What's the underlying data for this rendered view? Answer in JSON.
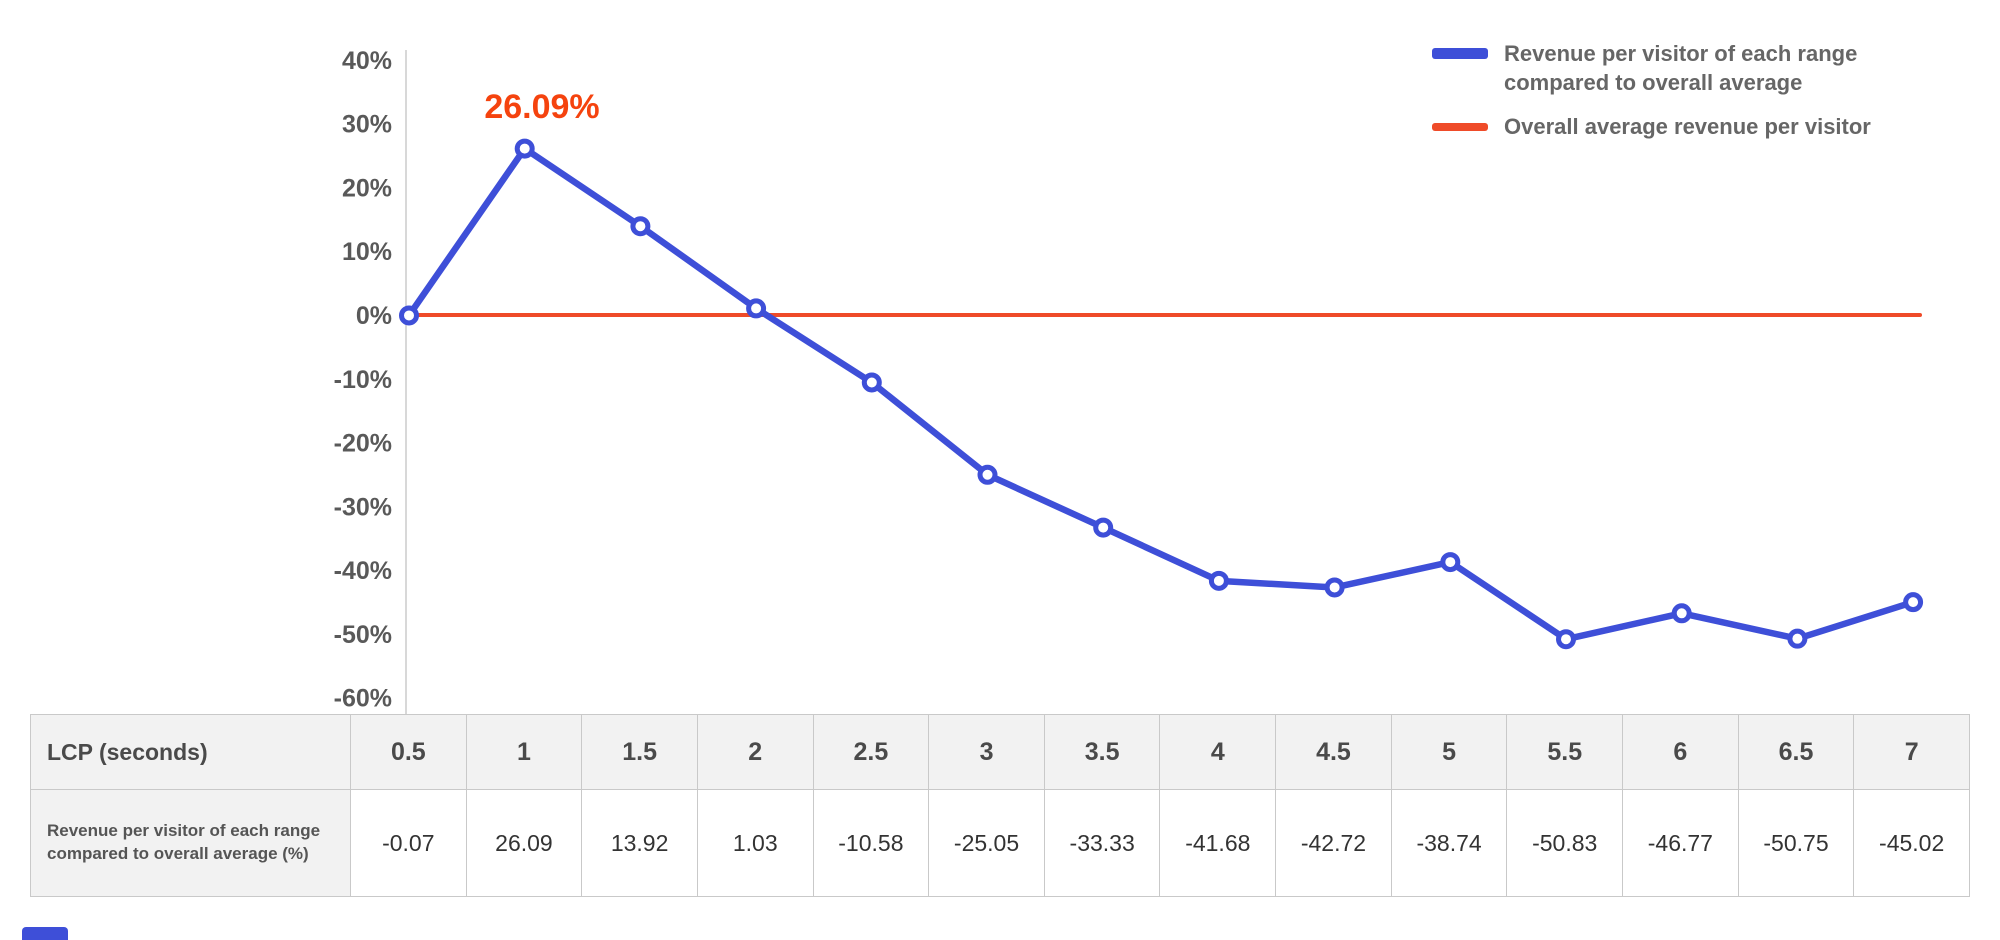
{
  "colors": {
    "series_blue": "#3e4fd8",
    "series_red": "#ef4b29",
    "annotation": "#f5430e",
    "axis_text": "#595959",
    "legend_text": "#666666",
    "grid": "#cccccc",
    "table_border": "#c9c9c9",
    "table_header_bg": "#f2f2f2"
  },
  "legend": {
    "items": [
      {
        "label": "Revenue per visitor of each range compared to overall average",
        "color": "#3e4fd8"
      },
      {
        "label": "Overall average revenue per visitor",
        "color": "#ef4b29"
      }
    ]
  },
  "annotation": {
    "text": "26.09%"
  },
  "chart_data": {
    "type": "line",
    "x": [
      0.5,
      1,
      1.5,
      2,
      2.5,
      3,
      3.5,
      4,
      4.5,
      5,
      5.5,
      6,
      6.5,
      7
    ],
    "xlabel": "LCP (seconds)",
    "ylabel": "",
    "ylim": [
      -60,
      40
    ],
    "grid": false,
    "legend_position": "top-right",
    "series": [
      {
        "name": "Revenue per visitor of each range compared to overall average",
        "values": [
          -0.07,
          26.09,
          13.92,
          1.03,
          -10.58,
          -25.05,
          -33.33,
          -41.68,
          -42.72,
          -38.74,
          -50.83,
          -46.77,
          -50.75,
          -45.02
        ],
        "color": "#3e4fd8"
      }
    ],
    "baseline": {
      "name": "Overall average revenue per visitor",
      "value": 0,
      "color": "#ef4b29"
    },
    "y_ticks": [
      {
        "label": "40%",
        "value": 40
      },
      {
        "label": "30%",
        "value": 30
      },
      {
        "label": "20%",
        "value": 20
      },
      {
        "label": "10%",
        "value": 10
      },
      {
        "label": "0%",
        "value": 0
      },
      {
        "label": "-10%",
        "value": -10
      },
      {
        "label": "-20%",
        "value": -20
      },
      {
        "label": "-30%",
        "value": -30
      },
      {
        "label": "-40%",
        "value": -40
      },
      {
        "label": "-50%",
        "value": -50
      },
      {
        "label": "-60%",
        "value": -60
      }
    ],
    "annotation": {
      "text": "26.09%",
      "x": 1,
      "y": 26.09
    }
  },
  "table": {
    "header_label": "LCP (seconds)",
    "row_label": "Revenue per visitor of each range compared to overall average (%)",
    "columns": [
      "0.5",
      "1",
      "1.5",
      "2",
      "2.5",
      "3",
      "3.5",
      "4",
      "4.5",
      "5",
      "5.5",
      "6",
      "6.5",
      "7"
    ],
    "values": [
      "-0.07",
      "26.09",
      "13.92",
      "1.03",
      "-10.58",
      "-25.05",
      "-33.33",
      "-41.68",
      "-42.72",
      "-38.74",
      "-50.83",
      "-46.77",
      "-50.75",
      "-45.02"
    ]
  }
}
